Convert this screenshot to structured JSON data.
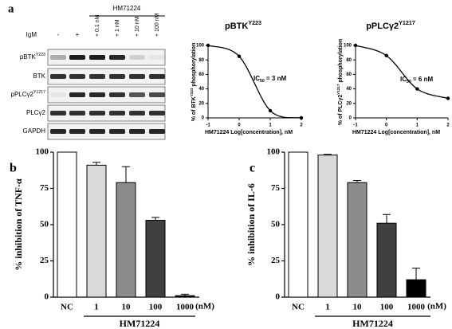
{
  "blot": {
    "panel_label": "a",
    "group_label": "HM71224",
    "treatment_label": "IgM",
    "lanes": [
      "-",
      "+",
      "+ 0.1 nM",
      "+ 1 nM",
      "+ 10 nM",
      "+ 100 nM"
    ],
    "rows": [
      {
        "text": "pBTK",
        "sup": "Y223"
      },
      {
        "text": "BTK"
      },
      {
        "text": "pPLCγ2",
        "sup": "Y1217"
      },
      {
        "text": "PLCγ2"
      },
      {
        "text": "GAPDH"
      }
    ]
  },
  "chart_data": [
    {
      "type": "line",
      "title": {
        "text": "pBTK",
        "sup": "Y223"
      },
      "annotation": {
        "text": "IC",
        "sub": "50",
        "rest": " = 3 nM"
      },
      "y_label": {
        "text": "% of BTK",
        "sup": "Y223",
        "rest": " phosphorylation"
      },
      "x_label": "HM71224 Log[concentration], nM",
      "x": [
        -1,
        0,
        1,
        2
      ],
      "values": [
        100,
        85,
        10,
        0
      ],
      "color": "#000000",
      "xlim": [
        -1,
        2
      ],
      "ylim": [
        0,
        100
      ],
      "xticks": [
        -1,
        0,
        1,
        2
      ],
      "yticks": [
        0,
        20,
        40,
        60,
        80,
        100
      ]
    },
    {
      "type": "line",
      "title": {
        "text": "pPLCγ2",
        "sup": "Y1217"
      },
      "annotation": {
        "text": "IC",
        "sub": "50",
        "rest": " = 6 nM"
      },
      "y_label": {
        "text": "% of PLCγ2",
        "sup": "Y1217",
        "rest": " phosphorylation"
      },
      "x_label": "HM71224 Log[concentration], nM",
      "x": [
        -1,
        0,
        1,
        2
      ],
      "values": [
        100,
        86,
        40,
        27
      ],
      "color": "#000000",
      "xlim": [
        -1,
        2
      ],
      "ylim": [
        0,
        100
      ],
      "xticks": [
        -1,
        0,
        1,
        2
      ],
      "yticks": [
        0,
        20,
        40,
        60,
        80,
        100
      ]
    },
    {
      "type": "bar",
      "panel_label": "b",
      "y_label": "% inhibition of TNF-α",
      "categories": [
        "NC",
        "1",
        "10",
        "100",
        "1000"
      ],
      "unit_label": "(nM)",
      "group_label": "HM71224",
      "values": [
        100,
        91,
        79,
        53,
        1
      ],
      "errors": [
        0,
        2,
        11,
        2,
        1
      ],
      "colors": [
        "#ffffff",
        "#d9d9d9",
        "#8c8c8c",
        "#404040",
        "#000000"
      ],
      "ylim": [
        0,
        100
      ],
      "yticks": [
        0,
        25,
        50,
        75,
        100
      ]
    },
    {
      "type": "bar",
      "panel_label": "c",
      "y_label": "% inhibition of IL-6",
      "categories": [
        "NC",
        "1",
        "10",
        "100",
        "1000"
      ],
      "unit_label": "(nM)",
      "group_label": "HM71224",
      "values": [
        100,
        98,
        79,
        51,
        12
      ],
      "errors": [
        0,
        0.5,
        1.5,
        6,
        8
      ],
      "colors": [
        "#ffffff",
        "#d9d9d9",
        "#8c8c8c",
        "#404040",
        "#000000"
      ],
      "ylim": [
        0,
        100
      ],
      "yticks": [
        0,
        25,
        50,
        75,
        100
      ]
    }
  ]
}
